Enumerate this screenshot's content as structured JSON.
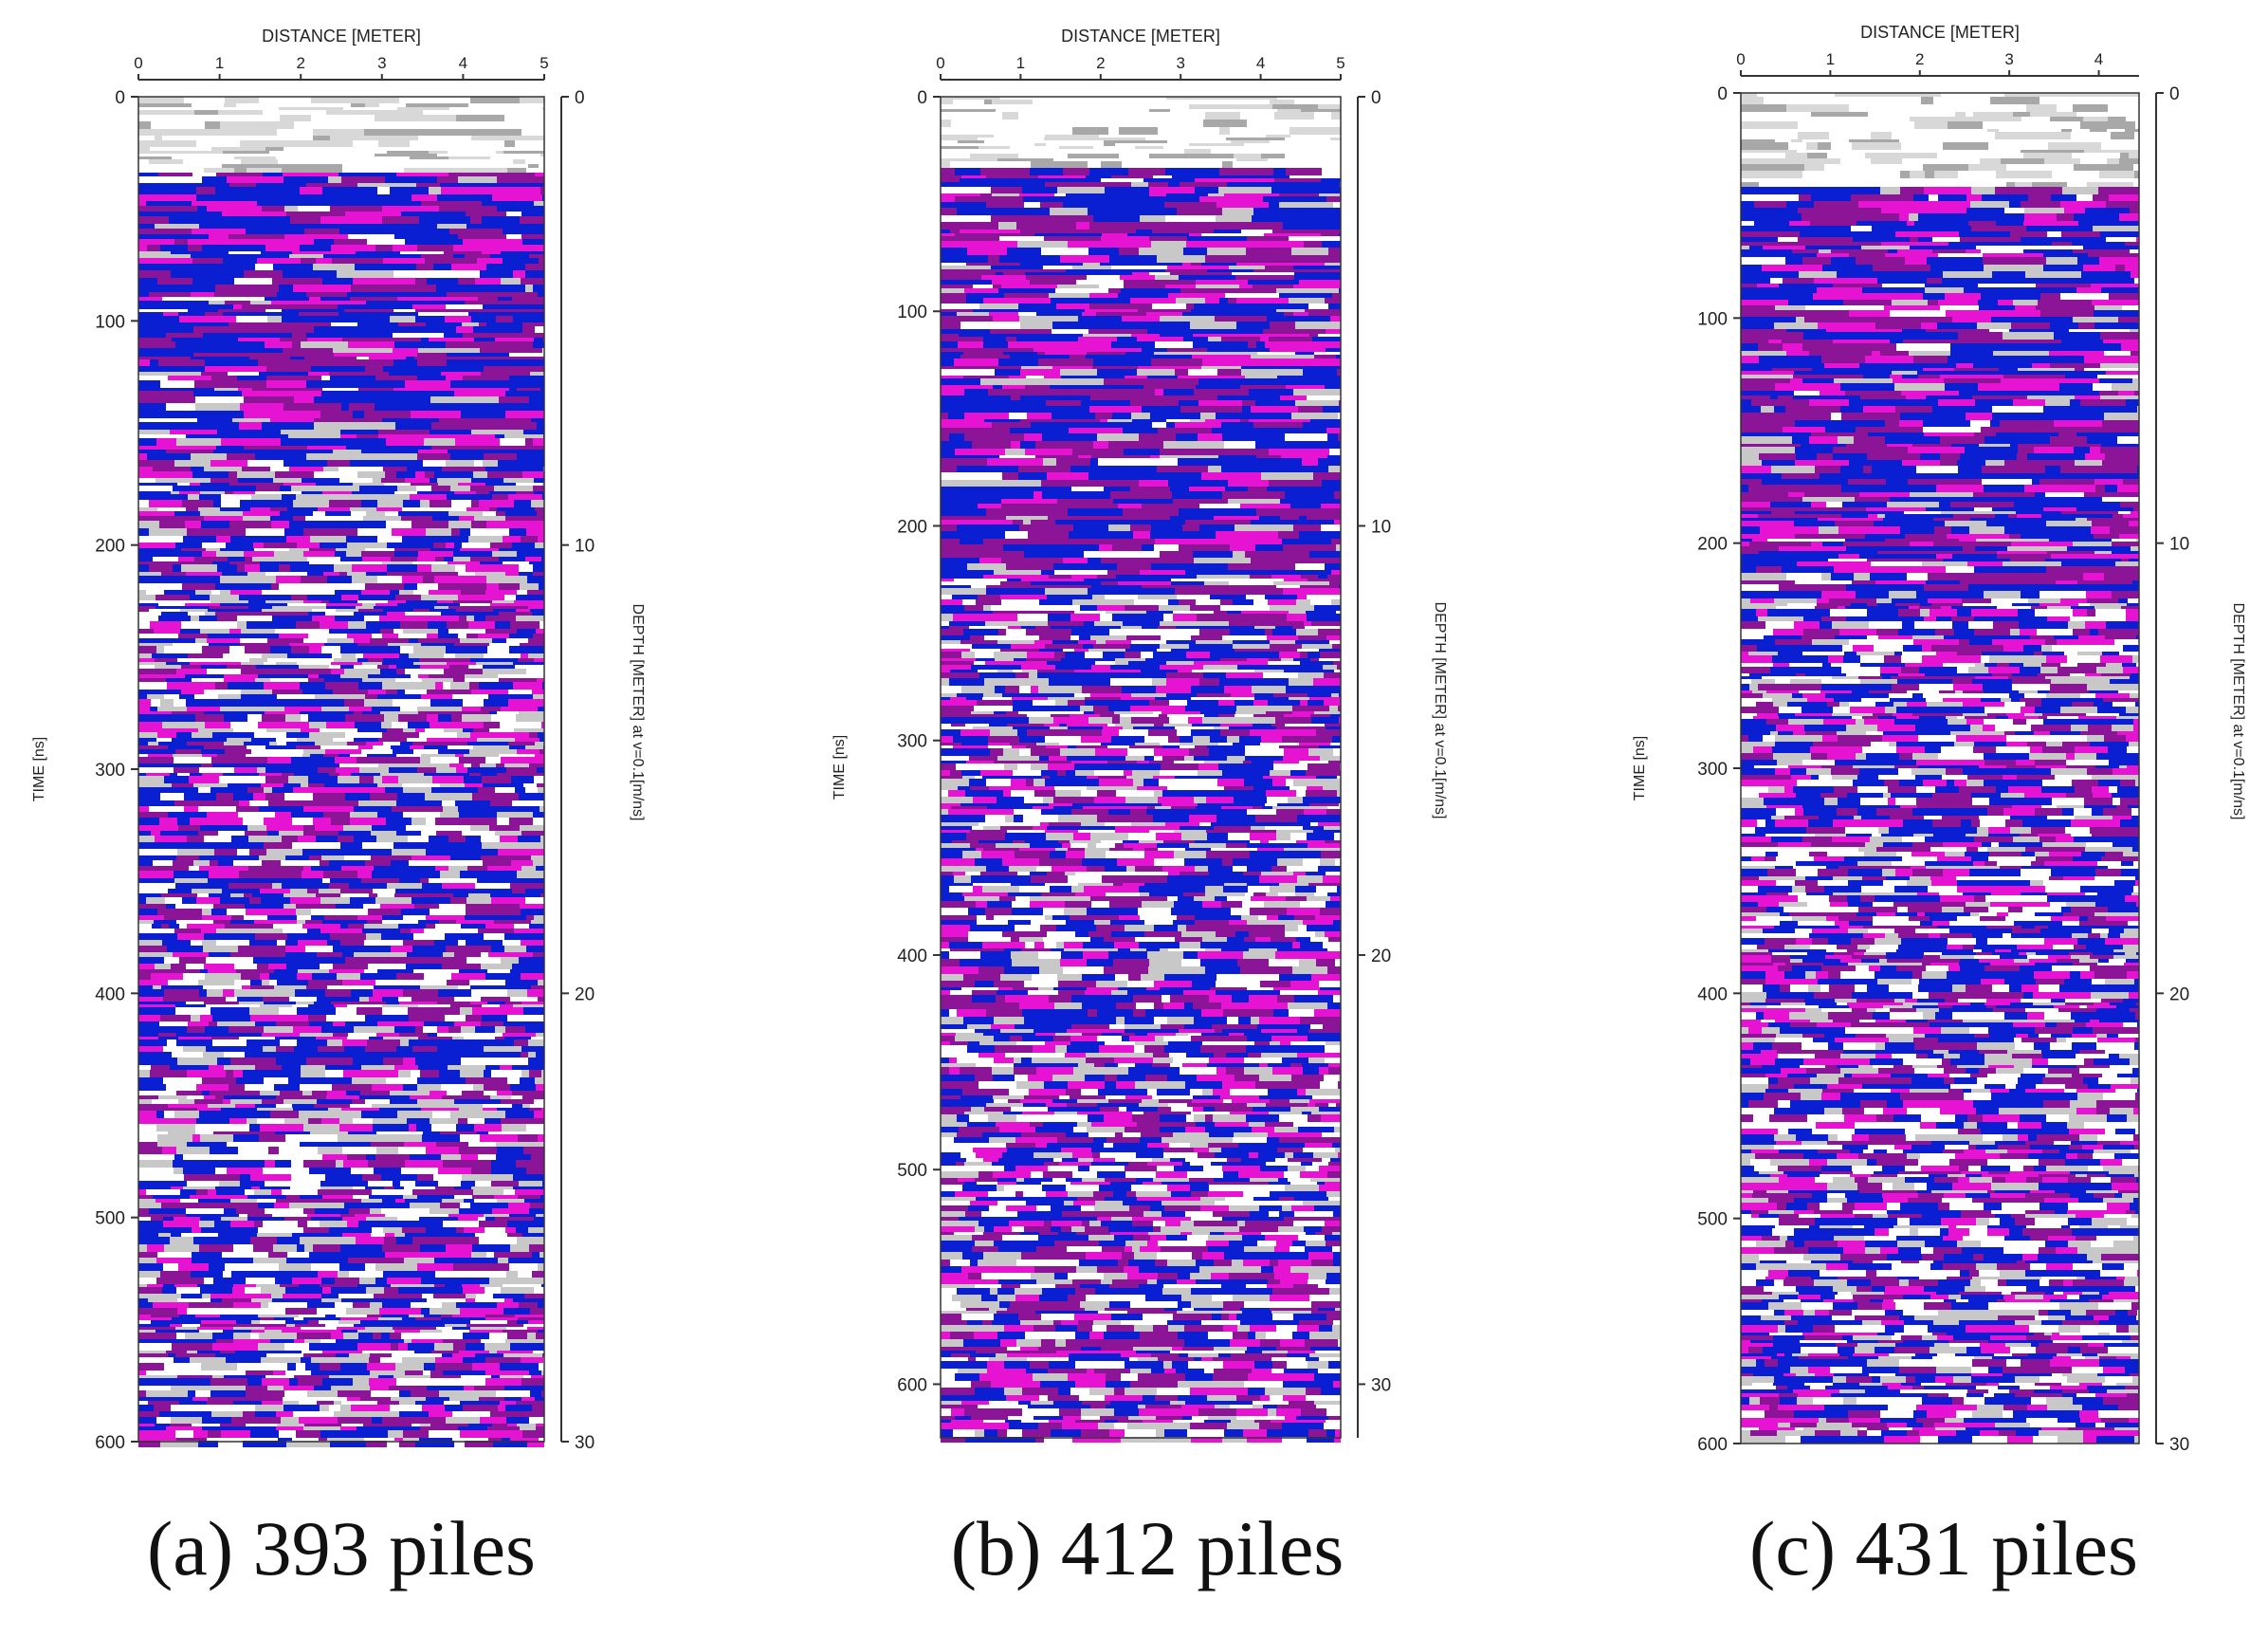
{
  "chart_data": [
    {
      "type": "heatmap",
      "panel": "a",
      "caption_label": "(a)",
      "caption_value": "393 piles",
      "top_axis_label": "DISTANCE [METER]",
      "left_axis_label": "TIME [ns]",
      "right_axis_label": "DEPTH [METER] at v=0.1[m/ns]",
      "x_ticks": [
        "0",
        "1",
        "2",
        "3",
        "4",
        "5"
      ],
      "x_range": [
        0,
        5
      ],
      "time_ticks": [
        "0",
        "100",
        "200",
        "300",
        "400",
        "500",
        "600"
      ],
      "time_range": [
        0,
        600
      ],
      "depth_ticks": [
        "0",
        "10",
        "20",
        "30"
      ],
      "depth_range": [
        0,
        30
      ],
      "air_layer_ns": 33,
      "strong_band_ns": [
        33,
        160
      ],
      "colormap": [
        "#0a1ed2",
        "#8c1496",
        "#e614d2",
        "#c8c8c8",
        "#ffffff"
      ]
    },
    {
      "type": "heatmap",
      "panel": "b",
      "caption_label": "(b)",
      "caption_value": "412 piles",
      "top_axis_label": "DISTANCE [METER]",
      "left_axis_label": "TIME [ns]",
      "right_axis_label": "DEPTH [METER] at v=0.1[m/ns]",
      "x_ticks": [
        "0",
        "1",
        "2",
        "3",
        "4",
        "5"
      ],
      "x_range": [
        0,
        5
      ],
      "time_ticks": [
        "0",
        "100",
        "200",
        "300",
        "400",
        "500",
        "600"
      ],
      "time_range": [
        0,
        625
      ],
      "depth_ticks": [
        "0",
        "10",
        "20",
        "30"
      ],
      "depth_range": [
        0,
        31.25
      ],
      "air_layer_ns": 33,
      "strong_band_ns": [
        33,
        230
      ],
      "colormap": [
        "#0a1ed2",
        "#8c1496",
        "#e614d2",
        "#c8c8c8",
        "#ffffff"
      ]
    },
    {
      "type": "heatmap",
      "panel": "c",
      "caption_label": "(c)",
      "caption_value": "431 piles",
      "top_axis_label": "DISTANCE [METER]",
      "left_axis_label": "TIME [ns]",
      "right_axis_label": "DEPTH [METER] at v=0.1[m/ns]",
      "x_ticks": [
        "0",
        "1",
        "2",
        "3",
        "4"
      ],
      "x_range": [
        0,
        4.45
      ],
      "time_ticks": [
        "0",
        "100",
        "200",
        "300",
        "400",
        "500",
        "600"
      ],
      "time_range": [
        0,
        600
      ],
      "depth_ticks": [
        "0",
        "10",
        "20",
        "30"
      ],
      "depth_range": [
        0,
        30
      ],
      "air_layer_ns": 40,
      "strong_band_ns": [
        40,
        220
      ],
      "colormap": [
        "#0a1ed2",
        "#8c1496",
        "#e614d2",
        "#c8c8c8",
        "#ffffff"
      ]
    }
  ]
}
